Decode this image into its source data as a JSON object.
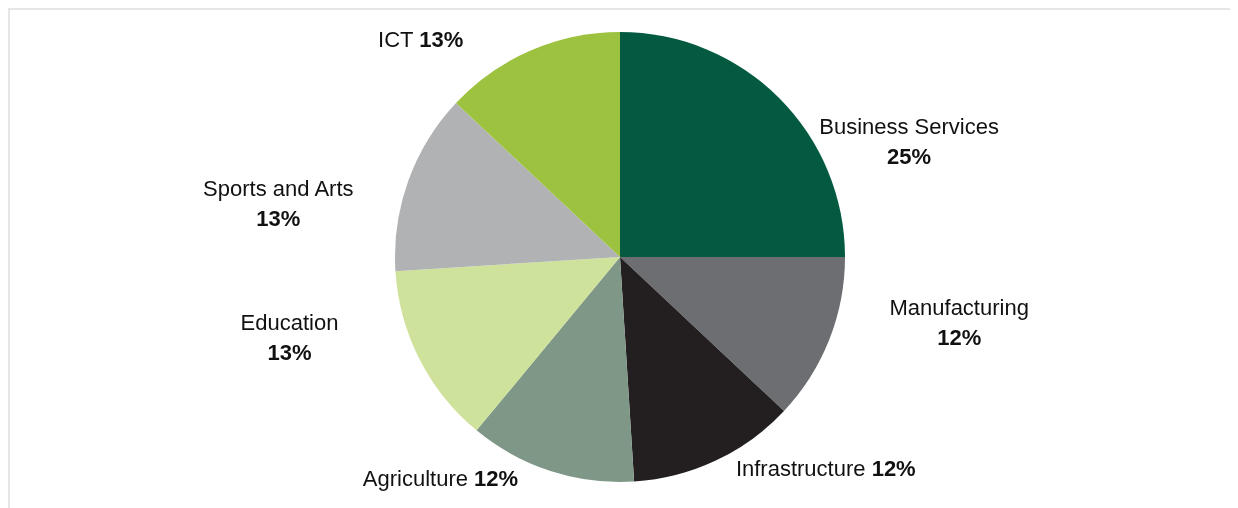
{
  "chart_data": {
    "type": "pie",
    "categories": [
      "Business Services",
      "Manufacturing",
      "Infrastructure",
      "Agriculture",
      "Education",
      "Sports and Arts",
      "ICT"
    ],
    "values": [
      25,
      12,
      12,
      12,
      13,
      13,
      13
    ],
    "value_labels": [
      "25%",
      "12%",
      "12%",
      "12%",
      "13%",
      "13%",
      "13%"
    ],
    "colors": [
      "#045a40",
      "#6d6e71",
      "#231f20",
      "#7f9786",
      "#cfe29b",
      "#b1b2b4",
      "#9dc23f"
    ]
  }
}
